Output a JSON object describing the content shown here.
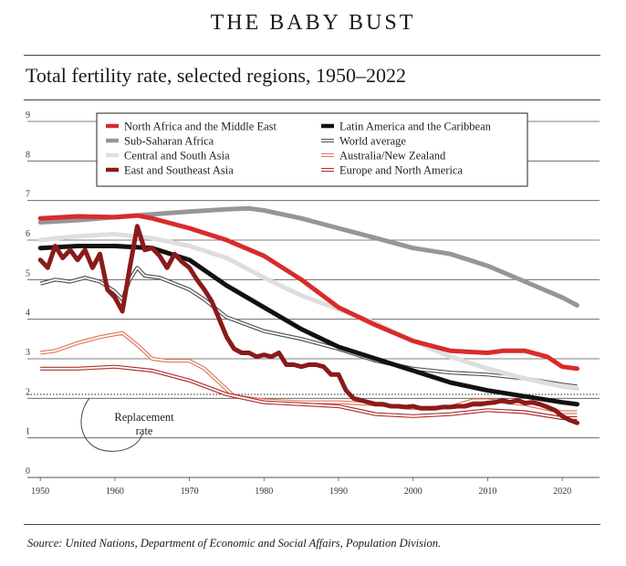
{
  "header": {
    "banner": "THE BABY BUST",
    "source": "Source: United Nations, Department of Economic and Social Affairs, Population Division."
  },
  "chart_data": {
    "type": "line",
    "title": "Total fertility rate, selected regions, 1950–2022",
    "xlabel": "",
    "ylabel": "",
    "xlim": [
      1949,
      2025
    ],
    "ylim": [
      0,
      9
    ],
    "x_ticks": [
      1950,
      1960,
      1970,
      1980,
      1990,
      2000,
      2010,
      2020
    ],
    "y_ticks": [
      0,
      1,
      2,
      3,
      4,
      5,
      6,
      7,
      8,
      9
    ],
    "grid": true,
    "legend_position": "top",
    "annotations": [
      {
        "text": [
          "Replacement",
          "rate"
        ],
        "value": 2.1
      }
    ],
    "series": [
      {
        "name": "North Africa and the Middle East",
        "color": "#d92b2b",
        "style": "thick",
        "x": [
          1950,
          1955,
          1960,
          1963,
          1965,
          1970,
          1975,
          1980,
          1985,
          1990,
          1995,
          2000,
          2005,
          2010,
          2012,
          2015,
          2018,
          2020,
          2022
        ],
        "y": [
          6.55,
          6.6,
          6.58,
          6.62,
          6.55,
          6.3,
          6.0,
          5.6,
          5.0,
          4.3,
          3.85,
          3.45,
          3.2,
          3.15,
          3.2,
          3.2,
          3.05,
          2.8,
          2.75
        ]
      },
      {
        "name": "Sub-Saharan Africa",
        "color": "#969696",
        "style": "thick",
        "x": [
          1950,
          1955,
          1960,
          1965,
          1970,
          1975,
          1978,
          1980,
          1985,
          1990,
          1995,
          2000,
          2005,
          2010,
          2015,
          2020,
          2022
        ],
        "y": [
          6.45,
          6.5,
          6.58,
          6.65,
          6.72,
          6.78,
          6.8,
          6.75,
          6.55,
          6.3,
          6.05,
          5.8,
          5.65,
          5.35,
          4.95,
          4.55,
          4.35
        ]
      },
      {
        "name": "Central and South Asia",
        "color": "#dedede",
        "style": "thick",
        "x": [
          1950,
          1955,
          1960,
          1965,
          1970,
          1975,
          1980,
          1985,
          1990,
          1995,
          2000,
          2005,
          2010,
          2015,
          2020,
          2022
        ],
        "y": [
          6.0,
          6.1,
          6.15,
          6.05,
          5.85,
          5.55,
          5.05,
          4.6,
          4.25,
          3.9,
          3.45,
          3.05,
          2.75,
          2.5,
          2.3,
          2.25
        ]
      },
      {
        "name": "East and Southeast Asia",
        "color": "#8b1a1a",
        "style": "thick",
        "x": [
          1950,
          1951,
          1952,
          1953,
          1954,
          1955,
          1956,
          1957,
          1958,
          1959,
          1960,
          1961,
          1962,
          1963,
          1964,
          1965,
          1966,
          1967,
          1968,
          1969,
          1970,
          1971,
          1972,
          1973,
          1974,
          1975,
          1976,
          1977,
          1978,
          1979,
          1980,
          1981,
          1982,
          1983,
          1984,
          1985,
          1986,
          1987,
          1988,
          1989,
          1990,
          1991,
          1992,
          1993,
          1994,
          1995,
          1996,
          1997,
          1998,
          1999,
          2000,
          2001,
          2002,
          2003,
          2004,
          2005,
          2006,
          2007,
          2008,
          2009,
          2010,
          2011,
          2012,
          2013,
          2014,
          2015,
          2016,
          2017,
          2018,
          2019,
          2020,
          2021,
          2022
        ],
        "y": [
          5.5,
          5.3,
          5.85,
          5.55,
          5.75,
          5.5,
          5.75,
          5.3,
          5.65,
          4.75,
          4.55,
          4.2,
          5.3,
          6.35,
          5.75,
          5.8,
          5.6,
          5.3,
          5.65,
          5.45,
          5.3,
          5.0,
          4.75,
          4.45,
          4.0,
          3.55,
          3.25,
          3.15,
          3.15,
          3.05,
          3.1,
          3.05,
          3.15,
          2.85,
          2.85,
          2.8,
          2.85,
          2.85,
          2.8,
          2.6,
          2.6,
          2.2,
          2.0,
          1.95,
          1.9,
          1.85,
          1.85,
          1.8,
          1.8,
          1.78,
          1.8,
          1.75,
          1.75,
          1.75,
          1.78,
          1.78,
          1.8,
          1.8,
          1.85,
          1.85,
          1.88,
          1.9,
          1.95,
          1.9,
          1.95,
          1.88,
          1.9,
          1.85,
          1.78,
          1.7,
          1.55,
          1.45,
          1.38
        ]
      },
      {
        "name": "Latin America and the Caribbean",
        "color": "#111111",
        "style": "thick",
        "x": [
          1950,
          1955,
          1960,
          1965,
          1970,
          1975,
          1980,
          1985,
          1990,
          1995,
          2000,
          2005,
          2010,
          2015,
          2020,
          2022
        ],
        "y": [
          5.8,
          5.85,
          5.85,
          5.8,
          5.5,
          4.85,
          4.3,
          3.75,
          3.3,
          3.0,
          2.7,
          2.4,
          2.2,
          2.05,
          1.9,
          1.85
        ]
      },
      {
        "name": "World average",
        "color": "#555555",
        "style": "double",
        "x": [
          1950,
          1952,
          1954,
          1956,
          1958,
          1960,
          1961,
          1962,
          1963,
          1964,
          1966,
          1968,
          1970,
          1972,
          1975,
          1980,
          1985,
          1990,
          1995,
          2000,
          2005,
          2010,
          2015,
          2020,
          2022
        ],
        "y": [
          4.9,
          5.0,
          4.95,
          5.05,
          4.95,
          4.7,
          4.5,
          5.0,
          5.3,
          5.1,
          5.05,
          4.9,
          4.75,
          4.5,
          4.05,
          3.7,
          3.5,
          3.25,
          2.95,
          2.75,
          2.65,
          2.6,
          2.5,
          2.35,
          2.3
        ]
      },
      {
        "name": "Australia/New Zealand",
        "color": "#e07a5f",
        "style": "double",
        "x": [
          1950,
          1952,
          1955,
          1958,
          1961,
          1963,
          1965,
          1967,
          1970,
          1972,
          1974,
          1976,
          1980,
          1985,
          1990,
          1995,
          2000,
          2005,
          2008,
          2010,
          2015,
          2020,
          2022
        ],
        "y": [
          3.15,
          3.2,
          3.4,
          3.55,
          3.65,
          3.35,
          3.0,
          2.95,
          2.95,
          2.75,
          2.4,
          2.05,
          1.95,
          1.9,
          1.9,
          1.85,
          1.75,
          1.78,
          1.95,
          1.95,
          1.85,
          1.65,
          1.65
        ]
      },
      {
        "name": "Europe and North America",
        "color": "#b03030",
        "style": "double",
        "x": [
          1950,
          1955,
          1960,
          1965,
          1970,
          1975,
          1980,
          1985,
          1990,
          1995,
          2000,
          2005,
          2010,
          2015,
          2020,
          2022
        ],
        "y": [
          2.75,
          2.75,
          2.8,
          2.7,
          2.45,
          2.1,
          1.9,
          1.85,
          1.8,
          1.6,
          1.55,
          1.6,
          1.7,
          1.65,
          1.5,
          1.5
        ]
      }
    ]
  }
}
